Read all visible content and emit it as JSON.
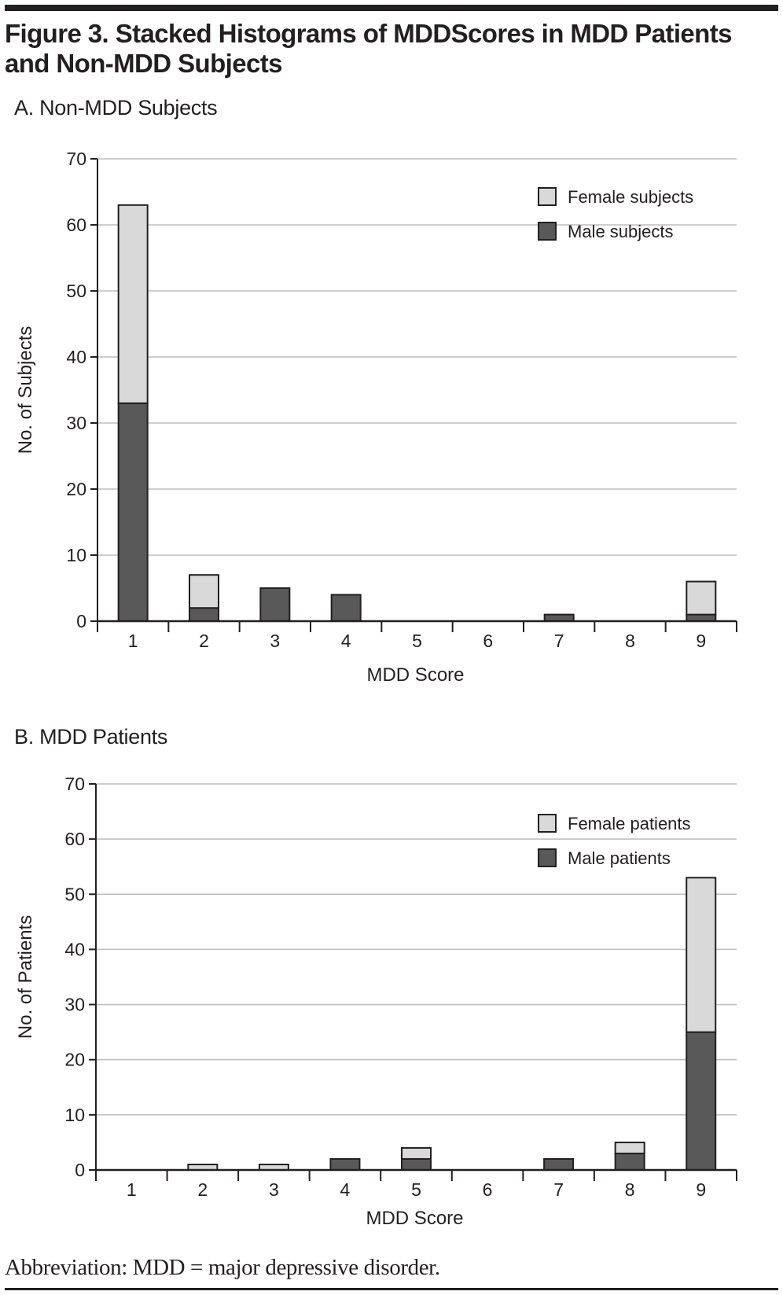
{
  "figure": {
    "title": "Figure 3. Stacked Histograms of MDDScores in MDD Patients and Non-MDD Subjects",
    "footnote": "Abbreviation: MDD = major depressive disorder.",
    "colors": {
      "female": "#d9d9d9",
      "male": "#595959",
      "outline": "#231f20",
      "grid": "#bdbdbd"
    }
  },
  "chart_data": [
    {
      "type": "bar",
      "stacked": true,
      "panel_title": "A. Non-MDD Subjects",
      "title": "A. Non-MDD Subjects",
      "xlabel": "MDD Score",
      "ylabel": "No. of Subjects",
      "categories": [
        "1",
        "2",
        "3",
        "4",
        "5",
        "6",
        "7",
        "8",
        "9"
      ],
      "series": [
        {
          "name": "Male subjects",
          "values": [
            33,
            2,
            5,
            4,
            0,
            0,
            1,
            0,
            1
          ]
        },
        {
          "name": "Female subjects",
          "values": [
            30,
            5,
            0,
            0,
            0,
            0,
            0,
            0,
            5
          ]
        }
      ],
      "legend": [
        {
          "name": "Female subjects",
          "series": "female"
        },
        {
          "name": "Male subjects",
          "series": "male"
        }
      ],
      "legend_position": "top-right",
      "ylim": [
        0,
        70
      ],
      "yticks": [
        0,
        10,
        20,
        30,
        40,
        50,
        60,
        70
      ],
      "grid": true
    },
    {
      "type": "bar",
      "stacked": true,
      "panel_title": "B. MDD Patients",
      "title": "B. MDD Patients",
      "xlabel": "MDD Score",
      "ylabel": "No. of Patients",
      "categories": [
        "1",
        "2",
        "3",
        "4",
        "5",
        "6",
        "7",
        "8",
        "9"
      ],
      "series": [
        {
          "name": "Male patients",
          "values": [
            0,
            0,
            0,
            2,
            2,
            0,
            2,
            3,
            25
          ]
        },
        {
          "name": "Female patients",
          "values": [
            0,
            1,
            1,
            0,
            2,
            0,
            0,
            2,
            28
          ]
        }
      ],
      "legend": [
        {
          "name": "Female patients",
          "series": "female"
        },
        {
          "name": "Male patients",
          "series": "male"
        }
      ],
      "legend_position": "top-right",
      "ylim": [
        0,
        70
      ],
      "yticks": [
        0,
        10,
        20,
        30,
        40,
        50,
        60,
        70
      ],
      "grid": true
    }
  ]
}
